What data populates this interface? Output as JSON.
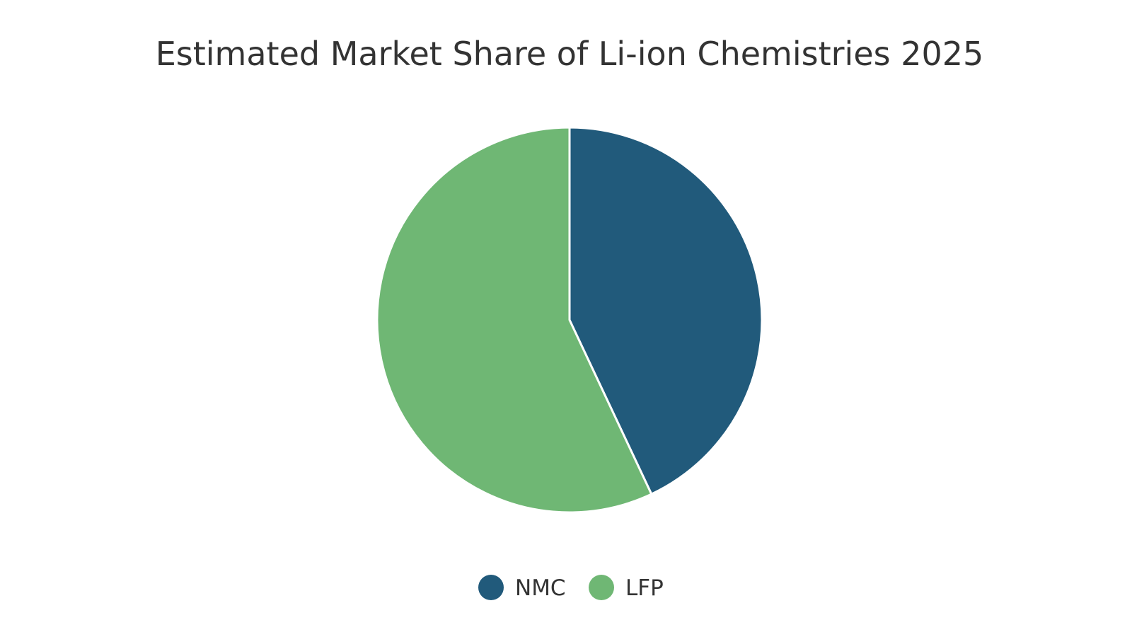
{
  "chart_data": {
    "type": "pie",
    "title": "Estimated Market Share of Li-ion Chemistries 2025",
    "categories": [
      "NMC",
      "LFP"
    ],
    "values": [
      43,
      57
    ],
    "colors": [
      "#215a7b",
      "#6fb774"
    ],
    "legend_position": "bottom",
    "start_angle": "top, clockwise"
  }
}
